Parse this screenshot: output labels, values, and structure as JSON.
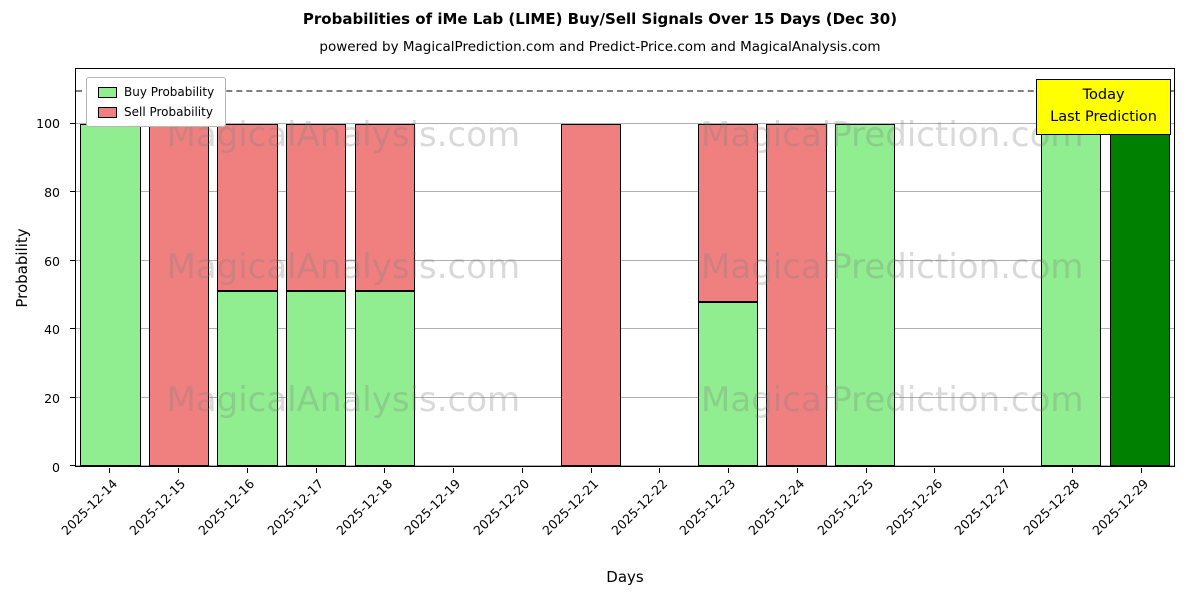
{
  "title": "Probabilities of iMe Lab (LIME) Buy/Sell Signals Over 15 Days (Dec 30)",
  "subtitle": "powered by MagicalPrediction.com and Predict-Price.com and MagicalAnalysis.com",
  "legend": {
    "buy": "Buy Probability",
    "sell": "Sell Probability"
  },
  "annotation": {
    "line1": "Today",
    "line2": "Last Prediction",
    "bg": "#ffff00"
  },
  "watermarks": [
    "MagicalAnalysis.com",
    "MagicalPrediction.com"
  ],
  "colors": {
    "buy": "#90ee90",
    "sell": "#f08080",
    "today": "#008000",
    "dashed": "#7f7f7f",
    "grid": "#b0b0b0"
  },
  "chart_data": {
    "type": "bar",
    "stacked": true,
    "title": "Probabilities of iMe Lab (LIME) Buy/Sell Signals Over 15 Days (Dec 30)",
    "xlabel": "Days",
    "ylabel": "Probability",
    "categories": [
      "2025-12-14",
      "2025-12-15",
      "2025-12-16",
      "2025-12-17",
      "2025-12-18",
      "2025-12-19",
      "2025-12-20",
      "2025-12-21",
      "2025-12-22",
      "2025-12-23",
      "2025-12-24",
      "2025-12-25",
      "2025-12-26",
      "2025-12-27",
      "2025-12-28",
      "2025-12-29"
    ],
    "series": [
      {
        "name": "Buy Probability",
        "color": "#90ee90",
        "values": [
          100,
          0,
          51,
          51,
          51,
          0,
          0,
          0,
          0,
          48,
          0,
          100,
          0,
          0,
          100,
          100
        ]
      },
      {
        "name": "Sell Probability",
        "color": "#f08080",
        "values": [
          0,
          100,
          49,
          49,
          49,
          0,
          0,
          100,
          0,
          52,
          100,
          0,
          0,
          0,
          0,
          0
        ]
      }
    ],
    "today_index": 15,
    "yticks": [
      0,
      20,
      40,
      60,
      80,
      100
    ],
    "ylim": [
      0,
      116
    ],
    "dashed_line_y": 110,
    "grid": true,
    "legend_position": "upper-left"
  }
}
